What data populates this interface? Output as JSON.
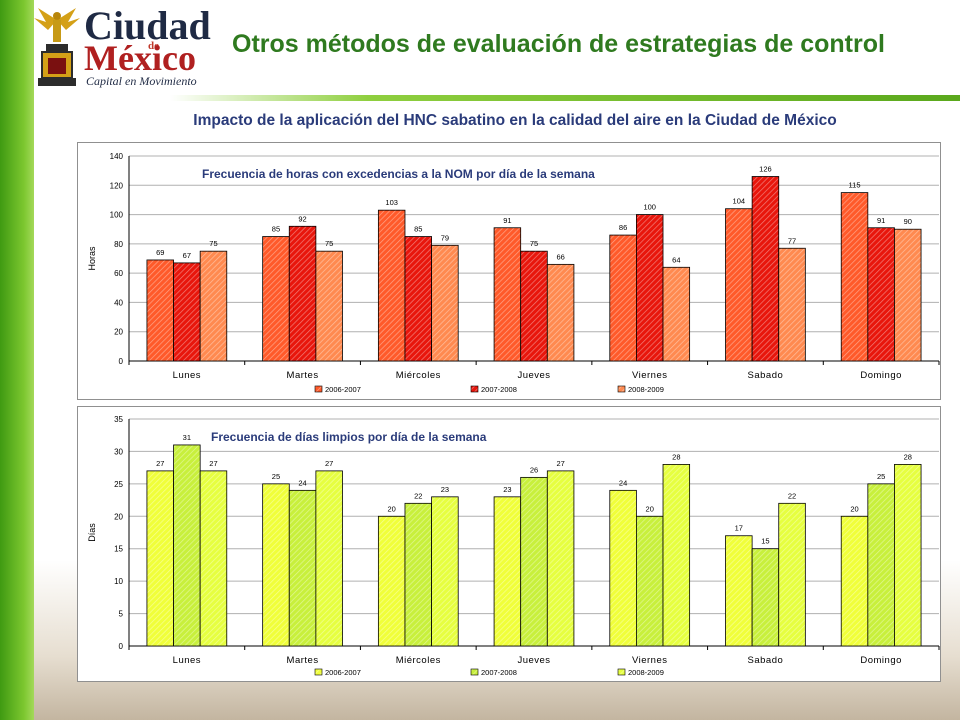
{
  "slide": {
    "title": "Otros métodos de evaluación de estrategias de control",
    "subtitle": "Impacto de la aplicación del HNC sabatino en la calidad del aire en la Ciudad de México"
  },
  "logo": {
    "line1": "Ciudad",
    "de": "de",
    "line2": "México",
    "tagline": "Capital en Movimiento"
  },
  "colors": {
    "sidebar_green": "#5fb01f",
    "title_green": "#2f7a1f",
    "subtitle_blue": "#2a3b7a",
    "red_2006": "#ff5a2a",
    "red_2007": "#e8160c",
    "red_2008": "#ff8a50",
    "green_2006": "#f0ff3a",
    "green_2007": "#c8f03c",
    "green_2008": "#e6ff40"
  },
  "chart_data": [
    {
      "type": "bar",
      "title": "Frecuencia de horas con excedencias a la NOM por día de la semana",
      "ylabel": "Horas",
      "xlabel": "",
      "ylim": [
        0,
        140
      ],
      "yticks": [
        "0",
        "20",
        "40",
        "60",
        "80",
        "100",
        "120",
        "140"
      ],
      "grid": true,
      "legend_position": "bottom",
      "categories": [
        "Lunes",
        "Martes",
        "Miércoles",
        "Jueves",
        "Viernes",
        "Sabado",
        "Domingo"
      ],
      "series": [
        {
          "name": "2006-2007",
          "values": [
            69,
            85,
            103,
            91,
            86,
            104,
            115
          ],
          "color": "#ff5a2a"
        },
        {
          "name": "2007-2008",
          "values": [
            67,
            92,
            85,
            75,
            100,
            126,
            91
          ],
          "color": "#e8160c"
        },
        {
          "name": "2008-2009",
          "values": [
            75,
            75,
            79,
            66,
            64,
            77,
            90
          ],
          "color": "#ff8a50"
        }
      ]
    },
    {
      "type": "bar",
      "title": "Frecuencia de días limpios por día de la semana",
      "ylabel": "Días",
      "xlabel": "",
      "ylim": [
        0,
        35
      ],
      "yticks": [
        "0",
        "5",
        "10",
        "15",
        "20",
        "25",
        "30",
        "35"
      ],
      "grid": true,
      "legend_position": "bottom",
      "categories": [
        "Lunes",
        "Martes",
        "Miércoles",
        "Jueves",
        "Viernes",
        "Sabado",
        "Domingo"
      ],
      "series": [
        {
          "name": "2006-2007",
          "values": [
            27,
            25,
            20,
            23,
            24,
            17,
            20
          ],
          "color": "#f0ff3a"
        },
        {
          "name": "2007-2008",
          "values": [
            31,
            24,
            22,
            26,
            20,
            15,
            25
          ],
          "color": "#c8f03c"
        },
        {
          "name": "2008-2009",
          "values": [
            27,
            27,
            23,
            27,
            28,
            22,
            28
          ],
          "color": "#e6ff40"
        }
      ]
    }
  ]
}
